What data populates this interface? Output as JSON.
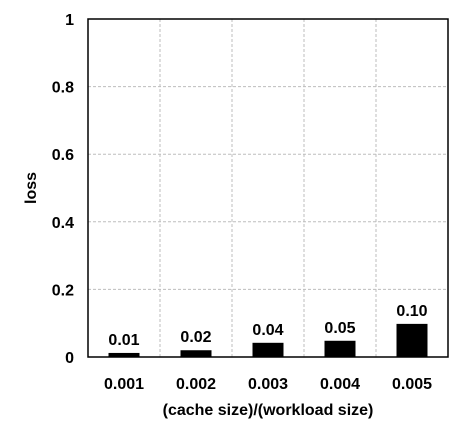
{
  "chart_data": {
    "type": "bar",
    "categories": [
      "0.001",
      "0.002",
      "0.003",
      "0.004",
      "0.005"
    ],
    "values": [
      0.012,
      0.02,
      0.042,
      0.048,
      0.098
    ],
    "data_labels": [
      "0.01",
      "0.02",
      "0.04",
      "0.05",
      "0.10"
    ],
    "xlabel": "(cache size)/(workload size)",
    "ylabel": "loss",
    "ylim": [
      0,
      1
    ],
    "yticks": [
      0,
      0.2,
      0.4,
      0.6,
      0.8,
      1
    ],
    "ytick_labels": [
      "0",
      "0.2",
      "0.4",
      "0.6",
      "0.8",
      "1"
    ],
    "grid": true,
    "bar_color": "#000000",
    "grid_color": "#bdbdbd"
  }
}
